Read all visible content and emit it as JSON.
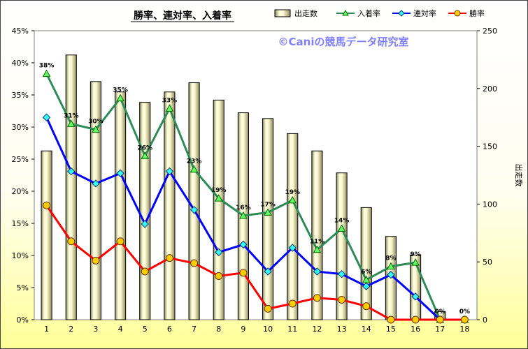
{
  "chart_data": {
    "type": "bar+line",
    "title": "勝率、連対率、入着率",
    "watermark": "©Caniの競馬データ研究室",
    "categories": [
      "1",
      "2",
      "3",
      "4",
      "5",
      "6",
      "7",
      "8",
      "9",
      "10",
      "11",
      "12",
      "13",
      "14",
      "15",
      "16",
      "17",
      "18"
    ],
    "bar_series": {
      "name": "出走数",
      "values": [
        146,
        229,
        206,
        197,
        188,
        197,
        205,
        190,
        179,
        174,
        161,
        146,
        127,
        97,
        72,
        56,
        7,
        0
      ]
    },
    "line_series": [
      {
        "name": "入着率",
        "color": "#2e8b57",
        "marker": "triangle",
        "values": [
          38.3,
          30.5,
          29.6,
          34.5,
          25.5,
          32.9,
          23.4,
          18.9,
          16.2,
          16.7,
          18.6,
          10.9,
          14.2,
          6.2,
          8.3,
          8.9,
          0,
          0
        ]
      },
      {
        "name": "連対率",
        "color": "#0000ff",
        "marker": "diamond",
        "values": [
          31.5,
          23.1,
          21.2,
          22.8,
          14.9,
          23.1,
          17.1,
          10.5,
          11.7,
          7.5,
          11.2,
          7.5,
          7.1,
          5.2,
          7.0,
          3.6,
          0,
          0
        ]
      },
      {
        "name": "勝率",
        "color": "#ff0000",
        "marker": "circle",
        "values": [
          17.8,
          12.2,
          9.2,
          12.2,
          7.5,
          9.6,
          8.8,
          6.8,
          7.3,
          1.7,
          2.5,
          3.4,
          3.1,
          2.1,
          0,
          0,
          0,
          0
        ]
      }
    ],
    "data_labels": [
      "38%",
      "31%",
      "30%",
      "35%",
      "26%",
      "33%",
      "23%",
      "19%",
      "16%",
      "17%",
      "19%",
      "11%",
      "14%",
      "6%",
      "8%",
      "9%",
      "0%",
      "0%"
    ],
    "y_left": {
      "ticks": [
        "0%",
        "5%",
        "10%",
        "15%",
        "20%",
        "25%",
        "30%",
        "35%",
        "40%",
        "45%"
      ],
      "ylim": [
        0,
        45
      ]
    },
    "y_right": {
      "label": "出走数",
      "ticks": [
        "0",
        "50",
        "100",
        "150",
        "200",
        "250"
      ],
      "ylim": [
        0,
        250
      ]
    },
    "grid": false,
    "legend_position": "top-right"
  }
}
